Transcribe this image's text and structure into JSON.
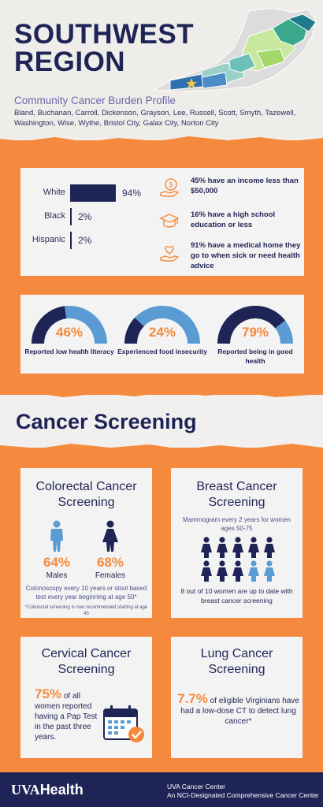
{
  "header": {
    "title_line1": "SOUTHWEST",
    "title_line2": "REGION",
    "subtitle": "Community Cancer Burden Profile",
    "localities": "Bland, Buchanan, Carroll, Dickenson, Grayson, Lee, Russell, Scott, Smyth, Tazewell, Washington, Wise, Wythe, Bristol City, Galax City, Norton City"
  },
  "demographics": {
    "bars": [
      {
        "label": "White",
        "value": 94,
        "display": "94%"
      },
      {
        "label": "Black",
        "value": 2,
        "display": "2%"
      },
      {
        "label": "Hispanic",
        "value": 2,
        "display": "2%"
      }
    ],
    "stats": [
      {
        "icon": "money-hand-icon",
        "text": "45% have an income less than $50,000"
      },
      {
        "icon": "graduation-cap-icon",
        "text": "16% have a high school education or less"
      },
      {
        "icon": "heart-hand-icon",
        "text": "91% have a medical home they go to when sick or need health advice"
      }
    ]
  },
  "gauges": [
    {
      "value": 46,
      "display": "46%",
      "caption": "Reported low health literacy"
    },
    {
      "value": 24,
      "display": "24%",
      "caption": "Experienced food insecurity"
    },
    {
      "value": 79,
      "display": "79%",
      "caption": "Reported being in good health"
    }
  ],
  "screening": {
    "section_title": "Cancer Screening",
    "colorectal": {
      "title": "Colorectal Cancer Screening",
      "males_pct": "64%",
      "males_label": "Males",
      "females_pct": "68%",
      "females_label": "Females",
      "note": "Colonoscopy every 10 years or stool based test every year beginning at age 50*",
      "footnote": "*Colorectal screening is now recommended starting at age 45"
    },
    "breast": {
      "title": "Breast Cancer Screening",
      "subtitle": "Mammogram every 2 years for women ages 50-75",
      "up_to_date": 8,
      "total": 10,
      "note": "8 out of 10 women are up to date with breast cancer screening"
    },
    "cervical": {
      "title": "Cervical Cancer Screening",
      "pct": "75%",
      "text_lead": "of all",
      "text_rest": "women reported having a Pap Test in the past three years."
    },
    "lung": {
      "title": "Lung Cancer Screening",
      "pct": "7.7%",
      "text_lead": "of eligible Virginians",
      "text_rest": "have had a low-dose CT to detect lung cancer*"
    }
  },
  "footer": {
    "logo_uva": "UVA",
    "logo_health": "Health",
    "line1": "UVA Cancer Center",
    "line2": "An NCI-Designated Comprehensive Cancer Center"
  },
  "colors": {
    "navy": "#1f2456",
    "orange": "#f58a3e",
    "light_blue": "#5a9bd4",
    "card": "#f4f3f3"
  }
}
